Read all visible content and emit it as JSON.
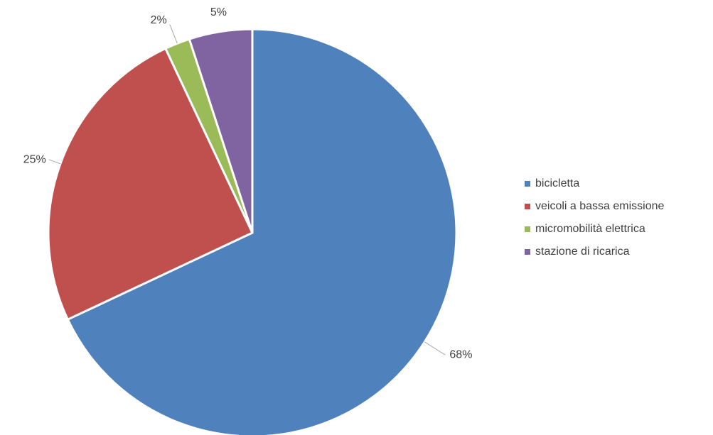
{
  "chart_data": {
    "type": "pie",
    "categories": [
      "bicicletta",
      "veicoli a bassa emissione",
      "micromobilità elettrica",
      "stazione di ricarica"
    ],
    "values": [
      68,
      25,
      2,
      5
    ],
    "labels": [
      "68%",
      "25%",
      "2%",
      "5%"
    ],
    "colors": [
      "#4f81bd",
      "#c0504d",
      "#9bbb59",
      "#8064a2"
    ],
    "start": "12 o'clock",
    "direction": "clockwise",
    "legend": "right"
  }
}
